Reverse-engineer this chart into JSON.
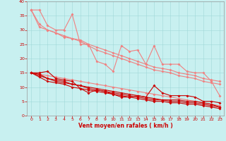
{
  "xlabel": "Vent moyen/en rafales ( km/h )",
  "bg_color": "#c8f0f0",
  "grid_color": "#9fd8d8",
  "xlim": [
    -0.5,
    23.5
  ],
  "ylim": [
    0,
    40
  ],
  "xticks": [
    0,
    1,
    2,
    3,
    4,
    5,
    6,
    7,
    8,
    9,
    10,
    11,
    12,
    13,
    14,
    15,
    16,
    17,
    18,
    19,
    20,
    21,
    22,
    23
  ],
  "yticks": [
    0,
    5,
    10,
    15,
    20,
    25,
    30,
    35,
    40
  ],
  "pink_lines": [
    [
      37,
      37,
      31.5,
      30,
      30,
      35.5,
      25,
      25,
      19,
      18,
      15.5,
      24.5,
      22.5,
      23,
      18,
      24.5,
      18,
      18,
      18,
      15.5,
      15,
      15,
      12,
      7
    ],
    [
      37,
      31,
      30,
      29,
      28,
      27,
      26.5,
      25,
      24,
      23,
      22,
      21,
      20,
      19,
      18,
      17,
      16.5,
      16,
      15,
      14.5,
      14,
      13,
      12.5,
      12
    ],
    [
      37,
      32,
      30,
      29,
      27.5,
      27,
      26,
      24.5,
      23,
      22,
      21,
      20,
      19,
      18,
      17,
      16,
      15.5,
      15,
      14,
      13.5,
      13,
      12,
      11.5,
      11
    ],
    [
      15,
      14.5,
      14,
      13.5,
      13,
      12.5,
      12,
      11.5,
      11,
      10.5,
      10,
      9.5,
      9,
      8.5,
      8,
      7.5,
      7,
      6.5,
      6,
      5.5,
      5,
      4.5,
      4,
      3.5
    ]
  ],
  "red_lines": [
    [
      15,
      15,
      15.5,
      13,
      12.5,
      12,
      9.5,
      8,
      9,
      8.5,
      7.5,
      6.5,
      6.5,
      7,
      6.5,
      10.5,
      8,
      7,
      7,
      7,
      6.5,
      5,
      5,
      4.5
    ],
    [
      15,
      14.5,
      13,
      12.5,
      12,
      11,
      10.5,
      10,
      9.5,
      9,
      8.5,
      8,
      7.5,
      7,
      6.5,
      6,
      5.5,
      5.5,
      5.5,
      5,
      5,
      4.5,
      4,
      3
    ],
    [
      15,
      14,
      13,
      12,
      11.5,
      11,
      10.5,
      9.5,
      9,
      8.5,
      8,
      7.5,
      7,
      6.5,
      6,
      5.5,
      5.5,
      5,
      5,
      4.5,
      4.5,
      4,
      3.5,
      3
    ],
    [
      15,
      13.5,
      12,
      11.5,
      11,
      10,
      9.5,
      9,
      8.5,
      8,
      7.5,
      7,
      6.5,
      6,
      5.5,
      5,
      5,
      4.5,
      4.5,
      4,
      4,
      3.5,
      3,
      2.5
    ]
  ],
  "pink_color": "#f08080",
  "red_color": "#cc0000",
  "marker_size": 2.0,
  "linewidth": 0.8,
  "tick_fontsize": 4.5,
  "xlabel_fontsize": 5.5
}
